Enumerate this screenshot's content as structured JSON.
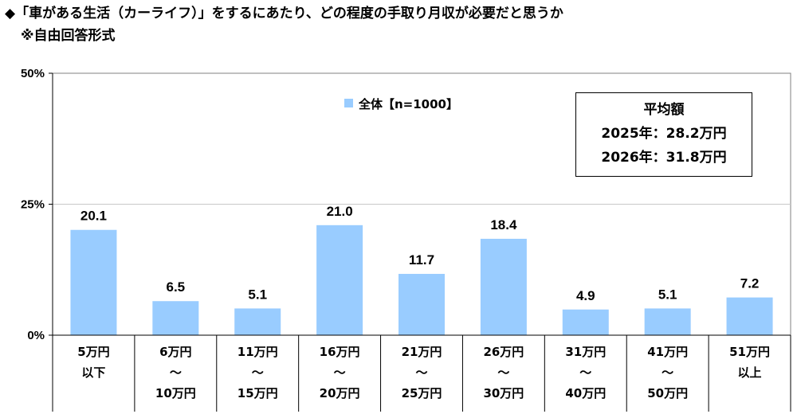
{
  "title": "◆「車がある生活（カーライフ）」をするにあたり、どの程度の手取り月収が必要だと思うか",
  "subtitle": "※自由回答形式",
  "legend": {
    "label": "全体【n=1000】",
    "color": "#99ccff"
  },
  "average_box": {
    "heading": "平均額",
    "line1": "2025年：28.2万円",
    "line2": "2026年：31.8万円"
  },
  "chart_data": {
    "type": "bar",
    "categories": [
      [
        "5万円",
        "以下"
      ],
      [
        "6万円",
        "～",
        "10万円"
      ],
      [
        "11万円",
        "～",
        "15万円"
      ],
      [
        "16万円",
        "～",
        "20万円"
      ],
      [
        "21万円",
        "～",
        "25万円"
      ],
      [
        "26万円",
        "～",
        "30万円"
      ],
      [
        "31万円",
        "～",
        "40万円"
      ],
      [
        "41万円",
        "～",
        "50万円"
      ],
      [
        "51万円",
        "以上"
      ]
    ],
    "series": [
      {
        "name": "全体【n=1000】",
        "values": [
          20.1,
          6.5,
          5.1,
          21.0,
          11.7,
          18.4,
          4.9,
          5.1,
          7.2
        ],
        "color": "#99ccff"
      }
    ],
    "value_labels": [
      "20.1",
      "6.5",
      "5.1",
      "21.0",
      "11.7",
      "18.4",
      "4.9",
      "5.1",
      "7.2"
    ],
    "ylim": [
      0,
      50
    ],
    "yticks": [
      0,
      25,
      50
    ],
    "ytick_labels": [
      "0%",
      "25%",
      "50%"
    ],
    "grid": true
  }
}
